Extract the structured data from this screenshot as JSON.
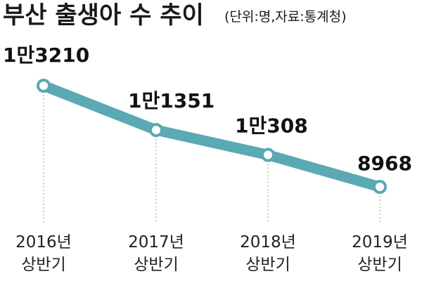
{
  "chart_data": {
    "type": "line",
    "title": "부산 출생아 수 추이",
    "subtitle": "(단위:명,자료:통계청)",
    "categories": [
      [
        "2016년",
        "상반기"
      ],
      [
        "2017년",
        "상반기"
      ],
      [
        "2018년",
        "상반기"
      ],
      [
        "2019년",
        "상반기"
      ]
    ],
    "values": [
      13210,
      11351,
      10308,
      8968
    ],
    "data_labels": [
      "1만3210",
      "1만1351",
      "1만308",
      "8968"
    ],
    "xlabel": "",
    "ylabel": "",
    "ylim": [
      8000,
      14000
    ],
    "grid": false,
    "legend": "none",
    "colors": {
      "line": "#5aa9b3",
      "marker_fill": "#ffffff",
      "marker_stroke": "#5aa9b3",
      "guide": "#9a9a9a"
    }
  }
}
